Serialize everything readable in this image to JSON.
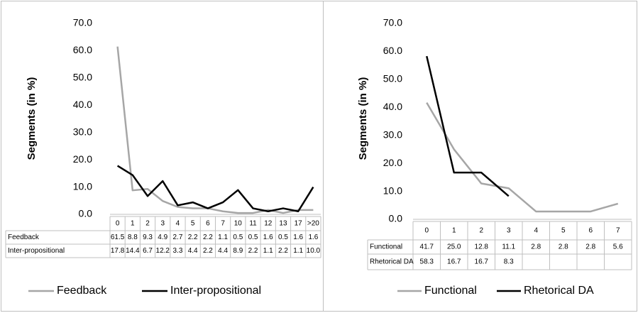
{
  "chart_data": [
    {
      "type": "line",
      "y_label": "Segments (in %)",
      "categories": [
        "0",
        "1",
        "2",
        "3",
        "4",
        "5",
        "6",
        "7",
        "10",
        "11",
        "12",
        "13",
        "17",
        ">20"
      ],
      "series": [
        {
          "name": "Feedback",
          "color": "#a6a6a6",
          "values": [
            61.5,
            8.8,
            9.3,
            4.9,
            2.7,
            2.2,
            2.2,
            1.1,
            0.5,
            0.5,
            1.6,
            0.5,
            1.6,
            1.6
          ],
          "value_labels": [
            "61.5",
            "8.8",
            "9.3",
            "4.9",
            "2.7",
            "2.2",
            "2.2",
            "1.1",
            "0.5",
            "0.5",
            "1.6",
            "0.5",
            "1.6",
            "1.6"
          ]
        },
        {
          "name": "Inter-propositional",
          "color": "#000000",
          "values": [
            17.8,
            14.4,
            6.7,
            12.2,
            3.3,
            4.4,
            2.2,
            4.4,
            8.9,
            2.2,
            1.1,
            2.2,
            1.1,
            10.0
          ],
          "value_labels": [
            "17.8",
            "14.4",
            "6.7",
            "12.2",
            "3.3",
            "4.4",
            "2.2",
            "4.4",
            "8.9",
            "2.2",
            "1.1",
            "2.2",
            "1.1",
            "10.0"
          ]
        }
      ],
      "ylim": [
        0,
        70
      ],
      "yticks": [
        {
          "value": 0,
          "label": "0.0"
        },
        {
          "value": 10,
          "label": "10.0"
        },
        {
          "value": 20,
          "label": "20.0"
        },
        {
          "value": 30,
          "label": "30.0"
        },
        {
          "value": 40,
          "label": "40.0"
        },
        {
          "value": 50,
          "label": "50.0"
        },
        {
          "value": 60,
          "label": "60.0"
        },
        {
          "value": 70,
          "label": "70.0"
        }
      ],
      "legend": "bottom"
    },
    {
      "type": "line",
      "y_label": "Segments (in %)",
      "categories": [
        "0",
        "1",
        "2",
        "3",
        "4",
        "5",
        "6",
        "7"
      ],
      "series": [
        {
          "name": "Functional",
          "color": "#a6a6a6",
          "values": [
            41.7,
            25.0,
            12.8,
            11.1,
            2.8,
            2.8,
            2.8,
            5.6
          ],
          "value_labels": [
            "41.7",
            "25.0",
            "12.8",
            "11.1",
            "2.8",
            "2.8",
            "2.8",
            "5.6"
          ]
        },
        {
          "name": "Rhetorical DA",
          "color": "#000000",
          "values": [
            58.3,
            16.7,
            16.7,
            8.3,
            null,
            null,
            null,
            null
          ],
          "value_labels": [
            "58.3",
            "16.7",
            "16.7",
            "8.3",
            null,
            null,
            null,
            null
          ]
        }
      ],
      "ylim": [
        0,
        70
      ],
      "yticks": [
        {
          "value": 0,
          "label": "0.0"
        },
        {
          "value": 10,
          "label": "10.0"
        },
        {
          "value": 20,
          "label": "20.0"
        },
        {
          "value": 30,
          "label": "30.0"
        },
        {
          "value": 40,
          "label": "40.0"
        },
        {
          "value": 50,
          "label": "50.0"
        },
        {
          "value": 60,
          "label": "60.0"
        },
        {
          "value": 70,
          "label": "70.0"
        }
      ],
      "legend": "bottom"
    }
  ]
}
